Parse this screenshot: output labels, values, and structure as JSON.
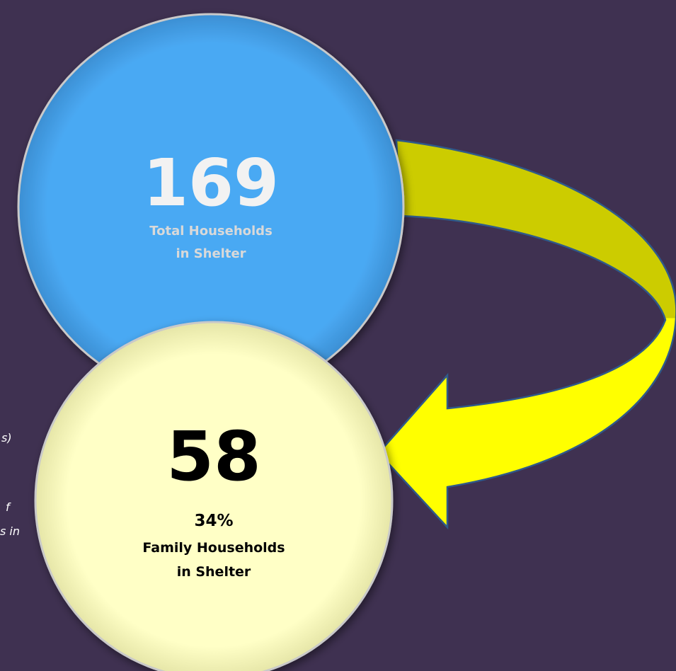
{
  "total": {
    "number": "169",
    "label_lines": [
      "Total Households",
      "in Shelter"
    ]
  },
  "family": {
    "number": "58",
    "percent": "34%",
    "label_lines": [
      "Family Households",
      "in Shelter"
    ]
  },
  "cropped_text": [
    "s)",
    "f",
    "s in"
  ]
}
